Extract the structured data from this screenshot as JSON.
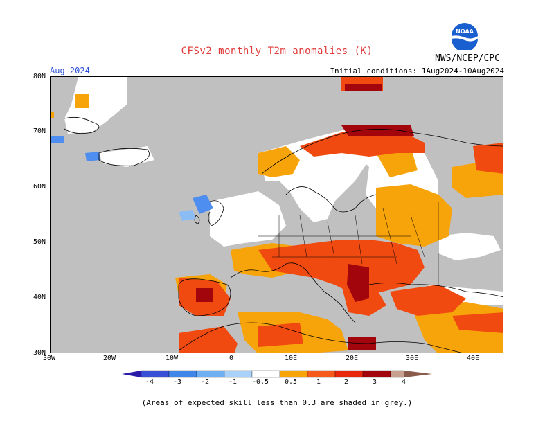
{
  "title": "CFSv2 monthly T2m anomalies (K)",
  "credit": "NWS/NCEP/CPC",
  "logo_text": "NOAA",
  "month_label": "Aug 2024",
  "initial_conditions": "Initial conditions: 1Aug2024-10Aug2024",
  "lon_labels": [
    "30W",
    "20W",
    "10W",
    "0",
    "10E",
    "20E",
    "30E",
    "40E"
  ],
  "lat_labels": [
    "80N",
    "70N",
    "60N",
    "50N",
    "40N",
    "30N"
  ],
  "colorbar": {
    "labels": [
      "-4",
      "-3",
      "-2",
      "-1",
      "-0.5",
      "0.5",
      "1",
      "2",
      "3",
      "4"
    ],
    "colors": [
      "#2a1aa8",
      "#3a4fd8",
      "#3f86e8",
      "#6fb0f2",
      "#a8d2fa",
      "#ffffff",
      "#f7a30a",
      "#f55a1a",
      "#e8260e",
      "#a2060c",
      "#c8a090",
      "#8a5a4a"
    ]
  },
  "footnote": "(Areas of expected skill less than 0.3 are shaded in grey.)",
  "colors": {
    "grey": "#c0c0c0",
    "white": "#ffffff",
    "orange": "#f7a30a",
    "redorange": "#f0420e",
    "red": "#e8260e",
    "darkred": "#9a0a10",
    "lightblue": "#8cbcf4",
    "blue": "#4d8ef0"
  }
}
